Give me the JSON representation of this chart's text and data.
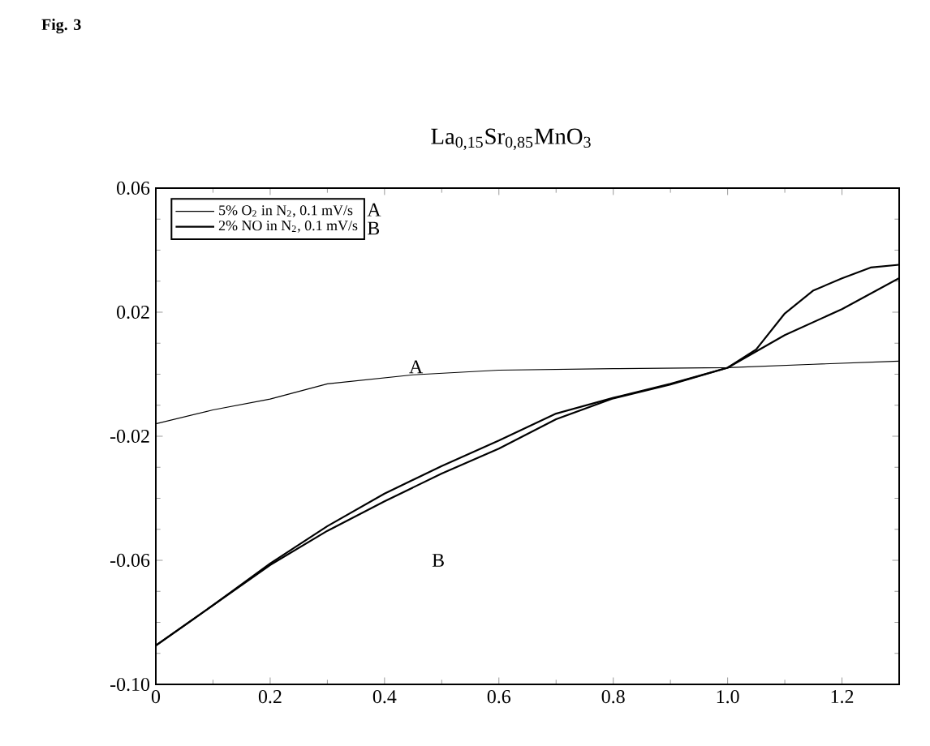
{
  "chart_data": {
    "type": "line",
    "title": "La$_{0,15}$Sr$_{0,85}$MnO$_{3}$",
    "xlim": [
      0,
      1.3
    ],
    "ylim": [
      -0.1,
      0.06
    ],
    "xticks": [
      0,
      0.2,
      0.4,
      0.6,
      0.8,
      {
        "value": 1.0,
        "label": "1.0"
      },
      1.2
    ],
    "yticks": [
      {
        "value": -0.1,
        "label": "-0.10"
      },
      -0.06,
      -0.02,
      0.02,
      0.06
    ],
    "grid": false,
    "legend": "top left",
    "marker": "none",
    "line_style": "solid",
    "series": [
      {
        "name": "5% O$_{2}$ in N$_{2}$,  0.1 mV/s",
        "color": "#000000",
        "x": [
          0,
          0.1,
          0.2,
          0.3,
          0.45,
          0.6,
          0.8,
          1.0,
          1.15,
          1.3
        ],
        "values": [
          -0.016,
          -0.0115,
          -0.008,
          -0.0031,
          -0.0002,
          0.0013,
          0.0018,
          0.0021,
          0.0032,
          0.0042
        ]
      },
      {
        "name": "2% NO in N$_{2}$,  0.1 mV/s",
        "color": "#000000",
        "x": [
          0,
          0.1,
          0.2,
          0.3,
          0.4,
          0.5,
          0.6,
          0.7,
          0.8,
          0.9,
          1.0,
          1.05,
          1.1,
          1.15,
          1.2,
          1.25,
          1.3
        ],
        "values": [
          -0.0875,
          -0.0745,
          -0.061,
          -0.049,
          -0.0385,
          -0.0296,
          -0.0214,
          -0.0127,
          -0.0076,
          -0.0031,
          0.0021,
          0.008,
          0.0196,
          0.027,
          0.0309,
          0.0344,
          0.0353
        ]
      },
      {
        "color": "#000000",
        "x": [
          0,
          0.2,
          0.3,
          0.4,
          0.5,
          0.6,
          0.7,
          0.8,
          0.9,
          1.0,
          1.1,
          1.2,
          1.3
        ],
        "values": [
          -0.0875,
          -0.0615,
          -0.0505,
          -0.041,
          -0.032,
          -0.024,
          -0.0145,
          -0.0078,
          -0.0033,
          0.0021,
          0.0126,
          0.021,
          0.031
        ]
      }
    ],
    "annotations": [
      "A",
      "B",
      "A",
      "B",
      "Fig. 3"
    ]
  }
}
